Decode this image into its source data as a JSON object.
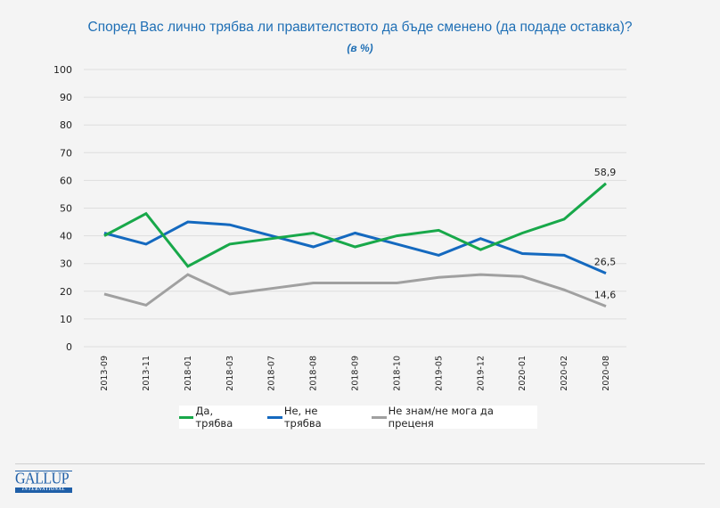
{
  "chart_data": {
    "type": "line",
    "title": "Според Вас лично трябва ли правителството да бъде сменено (да подаде оставка)?",
    "subtitle": "(в %)",
    "xlabel": "",
    "ylabel": "",
    "ylim": [
      0,
      100
    ],
    "yticks": [
      0,
      10,
      20,
      30,
      40,
      50,
      60,
      70,
      80,
      90,
      100
    ],
    "grid": true,
    "legend_position": "bottom",
    "categories": [
      "2013-09",
      "2013-11",
      "2018-01",
      "2018-03",
      "2018-07",
      "2018-08",
      "2018-09",
      "2018-10",
      "2019-05",
      "2019-12",
      "2020-01",
      "2020-02",
      "2020-08"
    ],
    "series": [
      {
        "name": "Да, трябва",
        "color": "#18a84a",
        "values": [
          40,
          48,
          29,
          37,
          39,
          41,
          36,
          40,
          42,
          35,
          41,
          46,
          58.9
        ],
        "end_label": "58,9"
      },
      {
        "name": "Не, не трябва",
        "color": "#1469bf",
        "values": [
          41,
          37,
          45,
          44,
          40,
          36,
          41,
          37,
          33,
          39,
          33.6,
          33,
          26.5
        ],
        "end_label": "26,5"
      },
      {
        "name": "Не знам/не мога да преценя",
        "color": "#a0a0a0",
        "values": [
          19,
          15,
          26,
          19,
          21,
          23,
          23,
          23,
          25,
          26,
          25.3,
          20.5,
          14.6
        ],
        "end_label": "14,6"
      }
    ]
  },
  "logo": {
    "name": "GALLUP",
    "sub": "INTERNATIONAL"
  }
}
